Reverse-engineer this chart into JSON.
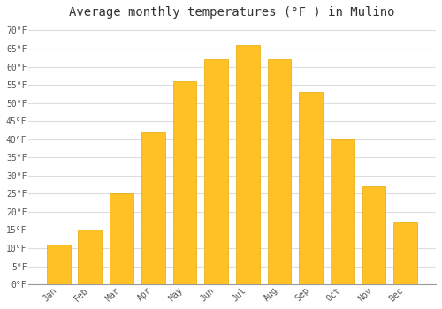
{
  "title": "Average monthly temperatures (°F ) in Mulino",
  "months": [
    "Jan",
    "Feb",
    "Mar",
    "Apr",
    "May",
    "Jun",
    "Jul",
    "Aug",
    "Sep",
    "Oct",
    "Nov",
    "Dec"
  ],
  "values": [
    11,
    15,
    25,
    42,
    56,
    62,
    66,
    62,
    53,
    40,
    27,
    17
  ],
  "bar_color": "#FFC125",
  "bar_edge_color": "#E8A800",
  "background_color": "#FFFFFF",
  "grid_color": "#DDDDDD",
  "ytick_labels": [
    "0°F",
    "5°F",
    "10°F",
    "15°F",
    "20°F",
    "25°F",
    "30°F",
    "35°F",
    "40°F",
    "45°F",
    "50°F",
    "55°F",
    "60°F",
    "65°F",
    "70°F"
  ],
  "ytick_values": [
    0,
    5,
    10,
    15,
    20,
    25,
    30,
    35,
    40,
    45,
    50,
    55,
    60,
    65,
    70
  ],
  "ylim": [
    0,
    72
  ],
  "title_fontsize": 10,
  "tick_fontsize": 7,
  "font_family": "monospace"
}
